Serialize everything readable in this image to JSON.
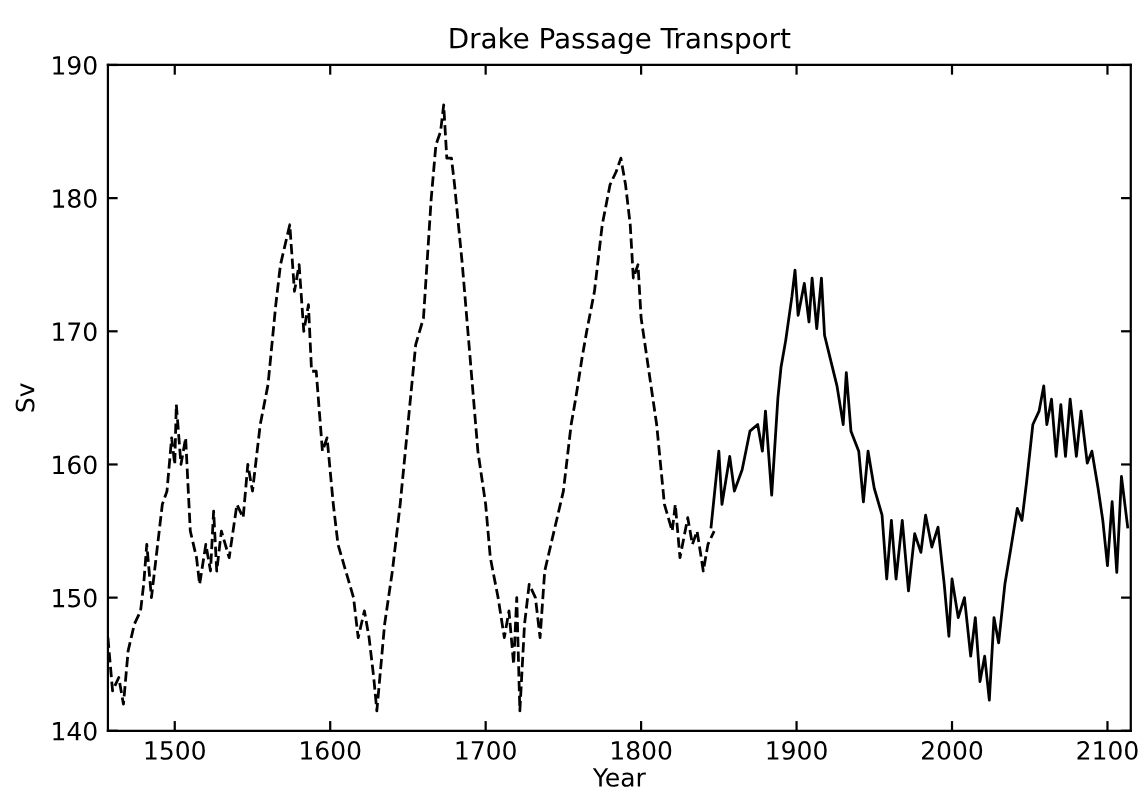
{
  "chart_data": {
    "type": "line",
    "title": "Drake Passage Transport",
    "xlabel": "Year",
    "ylabel": "Sv",
    "xlim": [
      1457,
      2115
    ],
    "ylim": [
      140,
      190
    ],
    "xticks": [
      1500,
      1600,
      1700,
      1800,
      1900,
      2000,
      2100
    ],
    "yticks": [
      140,
      150,
      160,
      170,
      180,
      190
    ],
    "grid": false,
    "legend": false,
    "series": [
      {
        "color": "#000000",
        "line_style": "dashed",
        "x": [
          1457,
          1460,
          1464,
          1467,
          1470,
          1474,
          1478,
          1480,
          1482,
          1485,
          1488,
          1492,
          1495,
          1498,
          1500,
          1501,
          1504,
          1507,
          1510,
          1514,
          1516,
          1520,
          1523,
          1525,
          1527,
          1530,
          1535,
          1540,
          1544,
          1547,
          1550,
          1555,
          1560,
          1565,
          1568,
          1572,
          1574,
          1577,
          1580,
          1583,
          1586,
          1588,
          1591,
          1595,
          1598,
          1602,
          1605,
          1610,
          1615,
          1618,
          1622,
          1625,
          1628,
          1630,
          1635,
          1640,
          1645,
          1650,
          1655,
          1660,
          1665,
          1668,
          1671,
          1673,
          1675,
          1678,
          1680,
          1685,
          1690,
          1695,
          1700,
          1703,
          1708,
          1712,
          1715,
          1718,
          1720,
          1722,
          1725,
          1728,
          1732,
          1735,
          1738,
          1742,
          1746,
          1750,
          1755,
          1758,
          1762,
          1765,
          1770,
          1775,
          1780,
          1784,
          1787,
          1790,
          1793,
          1795,
          1798,
          1800,
          1805,
          1810,
          1815,
          1820,
          1822,
          1825,
          1830,
          1833,
          1836,
          1840,
          1843,
          1847
        ],
        "values": [
          147,
          143,
          144,
          142,
          146,
          148,
          149,
          151,
          154,
          150,
          153,
          157,
          158,
          162,
          160,
          164.5,
          160,
          162,
          155,
          153,
          151,
          154,
          152,
          156.5,
          152,
          155,
          153,
          157,
          156,
          160,
          158,
          163,
          166,
          172,
          175,
          177,
          178,
          173,
          175,
          170,
          172,
          167,
          167,
          161,
          162,
          157,
          154,
          152,
          150,
          147,
          149,
          147,
          144,
          141.5,
          148,
          152,
          157,
          163,
          169,
          171,
          180,
          184,
          185,
          187,
          183,
          183,
          181,
          175,
          168,
          161,
          157,
          153,
          150,
          147,
          149,
          145,
          150,
          141.5,
          148,
          151,
          150,
          147,
          152,
          154,
          156,
          158,
          163,
          165,
          168,
          170,
          173,
          178,
          181,
          182,
          183,
          181,
          178,
          174,
          175,
          171,
          167,
          163,
          157,
          155,
          157,
          153,
          156,
          154,
          155,
          152,
          154,
          155
        ]
      },
      {
        "color": "#000000",
        "line_style": "solid",
        "x": [
          1845,
          1850,
          1852,
          1857,
          1860,
          1865,
          1870,
          1875,
          1878,
          1880,
          1884,
          1888,
          1890,
          1893,
          1897,
          1899,
          1901,
          1905,
          1908,
          1910,
          1913,
          1916,
          1918,
          1922,
          1926,
          1930,
          1932,
          1935,
          1940,
          1943,
          1946,
          1950,
          1955,
          1958,
          1961,
          1964,
          1968,
          1972,
          1976,
          1980,
          1983,
          1987,
          1991,
          1995,
          1998,
          2000,
          2004,
          2008,
          2012,
          2015,
          2018,
          2021,
          2024,
          2027,
          2030,
          2034,
          2038,
          2042,
          2045,
          2048,
          2052,
          2056,
          2059,
          2061,
          2064,
          2067,
          2070,
          2073,
          2076,
          2080,
          2083,
          2087,
          2090,
          2094,
          2097,
          2100,
          2103,
          2106,
          2109,
          2113
        ],
        "values": [
          155.3,
          161,
          157,
          160.6,
          158,
          159.6,
          162.5,
          163,
          161,
          164,
          157.7,
          165,
          167.3,
          169.3,
          172.6,
          174.6,
          171.2,
          173.6,
          170.7,
          174,
          170.2,
          174,
          169.7,
          167.8,
          165.9,
          163,
          166.9,
          162.5,
          161,
          157.2,
          161,
          158.2,
          156.2,
          151.4,
          155.8,
          151.4,
          155.8,
          150.5,
          154.8,
          153.4,
          156.2,
          153.8,
          155.3,
          151,
          147.1,
          151.4,
          148.5,
          150,
          145.6,
          148.5,
          143.7,
          145.6,
          142.3,
          148.5,
          146.6,
          151,
          153.8,
          156.7,
          155.8,
          158.7,
          163,
          164,
          165.9,
          163,
          164.9,
          160.6,
          164.5,
          160.6,
          164.9,
          160.6,
          164,
          160.1,
          161,
          158.2,
          155.8,
          152.4,
          157.2,
          151.9,
          159.1,
          155.3
        ]
      }
    ]
  }
}
